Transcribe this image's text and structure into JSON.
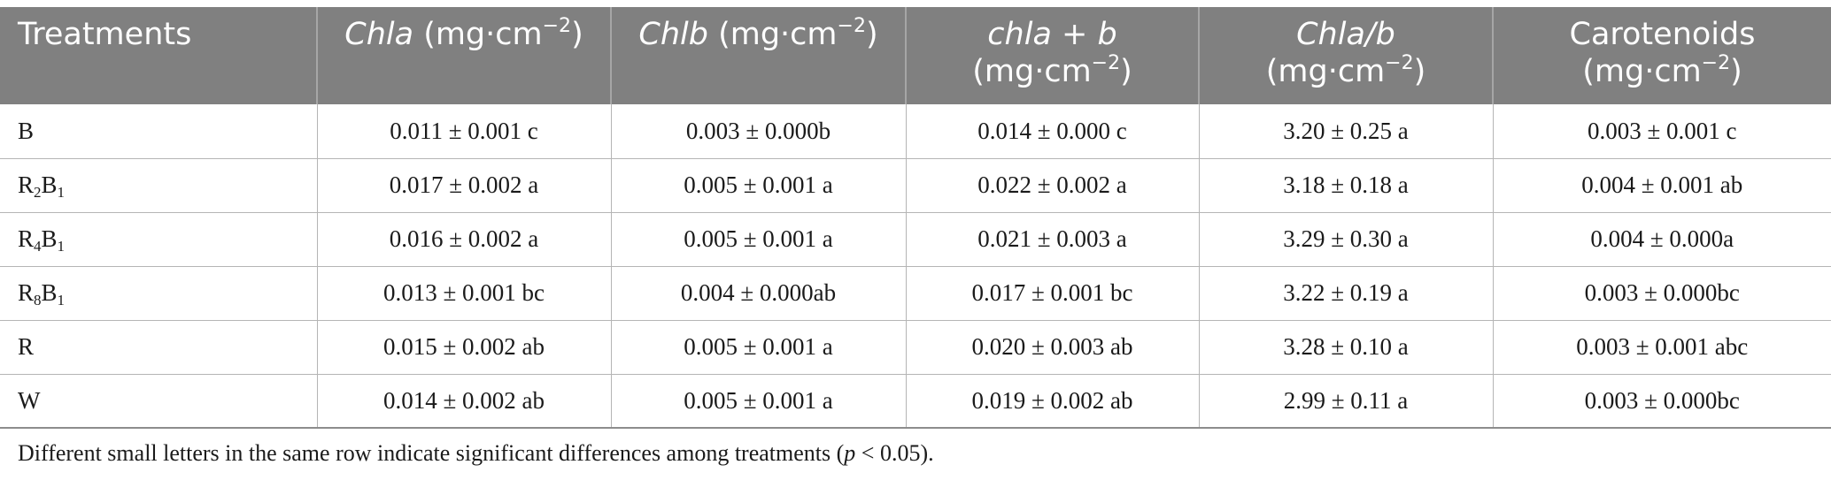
{
  "table": {
    "headers": [
      {
        "italic": "",
        "line1": "Treatments",
        "line2": ""
      },
      {
        "italic": "Chla",
        "line1": " (mg·cm",
        "exp": "−2",
        "close": ")",
        "line2": ""
      },
      {
        "italic": "Chlb",
        "line1": " (mg·cm",
        "exp": "−2",
        "close": ")",
        "line2": ""
      },
      {
        "italic": "chla + b",
        "line1": "",
        "line2": "(mg·cm",
        "exp": "−2",
        "close": ")"
      },
      {
        "italic": "Chla/b",
        "line1": "",
        "line2": "(mg·cm",
        "exp": "−2",
        "close": ")"
      },
      {
        "italic": "",
        "line1": "Carotenoids",
        "line2": "(mg·cm",
        "exp": "−2",
        "close": ")"
      }
    ],
    "rows": [
      {
        "treatment": {
          "base": "B",
          "parts": []
        },
        "values": [
          "0.011 ± 0.001 c",
          "0.003 ± 0.000b",
          "0.014 ± 0.000 c",
          "3.20 ± 0.25 a",
          "0.003 ± 0.001 c"
        ]
      },
      {
        "treatment": {
          "base": "",
          "parts": [
            [
              "R",
              "2"
            ],
            [
              "B",
              "1"
            ]
          ]
        },
        "values": [
          "0.017 ± 0.002 a",
          "0.005 ± 0.001 a",
          "0.022 ± 0.002 a",
          "3.18 ± 0.18 a",
          "0.004 ± 0.001 ab"
        ]
      },
      {
        "treatment": {
          "base": "",
          "parts": [
            [
              "R",
              "4"
            ],
            [
              "B",
              "1"
            ]
          ]
        },
        "values": [
          "0.016 ± 0.002 a",
          "0.005 ± 0.001 a",
          "0.021 ± 0.003 a",
          "3.29 ± 0.30 a",
          "0.004 ± 0.000a"
        ]
      },
      {
        "treatment": {
          "base": "",
          "parts": [
            [
              "R",
              "8"
            ],
            [
              "B",
              "1"
            ]
          ]
        },
        "values": [
          "0.013 ± 0.001 bc",
          "0.004 ± 0.000ab",
          "0.017 ± 0.001 bc",
          "3.22 ± 0.19 a",
          "0.003 ± 0.000bc"
        ]
      },
      {
        "treatment": {
          "base": "R",
          "parts": []
        },
        "values": [
          "0.015 ± 0.002 ab",
          "0.005 ± 0.001 a",
          "0.020 ± 0.003 ab",
          "3.28 ± 0.10 a",
          "0.003 ± 0.001 abc"
        ]
      },
      {
        "treatment": {
          "base": "W",
          "parts": []
        },
        "values": [
          "0.014 ± 0.002 ab",
          "0.005 ± 0.001 a",
          "0.019 ± 0.002 ab",
          "2.99 ± 0.11 a",
          "0.003 ± 0.000bc"
        ]
      }
    ]
  },
  "footnote": {
    "text_before": "Different small letters in the same row indicate significant differences among treatments (",
    "p": "p",
    "text_after": " < 0.05)."
  }
}
